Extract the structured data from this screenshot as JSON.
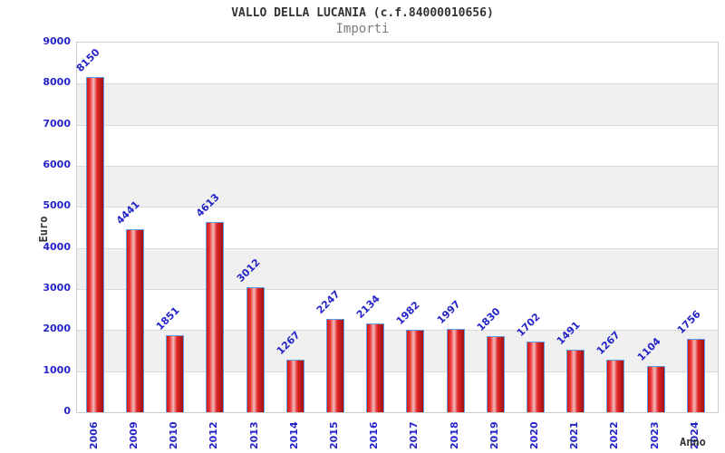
{
  "header": {
    "title": "VALLO DELLA LUCANIA (c.f.84000010656)",
    "subtitle": "Importi"
  },
  "chart_data": {
    "type": "bar",
    "title": "VALLO DELLA LUCANIA (c.f.84000010656)",
    "subtitle": "Importi",
    "categories": [
      "2006",
      "2009",
      "2010",
      "2012",
      "2013",
      "2014",
      "2015",
      "2016",
      "2017",
      "2018",
      "2019",
      "2020",
      "2021",
      "2022",
      "2023",
      "2024"
    ],
    "values": [
      8150,
      4441,
      1851,
      4613,
      3012,
      1267,
      2247,
      2134,
      1982,
      1997,
      1830,
      1702,
      1491,
      1267,
      1104,
      1756
    ],
    "xlabel": "Anno",
    "ylabel": "Euro",
    "ylim": [
      0,
      9000
    ],
    "ytick_step": 1000,
    "yticks": [
      0,
      1000,
      2000,
      3000,
      4000,
      5000,
      6000,
      7000,
      8000,
      9000
    ],
    "grid": "horizontal-bands",
    "legend": "none",
    "value_label_rotation_deg": -45,
    "xtick_rotation_deg": -90,
    "colors": {
      "bar_edge_red": "#cc1a1a",
      "bar_bright_red": "#ee3333",
      "bar_highlight": "#f2bcbc",
      "bar_dark_red": "#a01010",
      "bar_border_blue": "#5e9ce6",
      "tick_label_blue": "#2424c8",
      "axis_title_dark": "#333333",
      "subtitle_gray": "#7d7d7d",
      "band_gray": "#f0f0f0",
      "band_white": "#ffffff",
      "gridline_gray": "#dadada",
      "plot_border_gray": "#cccccc"
    }
  }
}
